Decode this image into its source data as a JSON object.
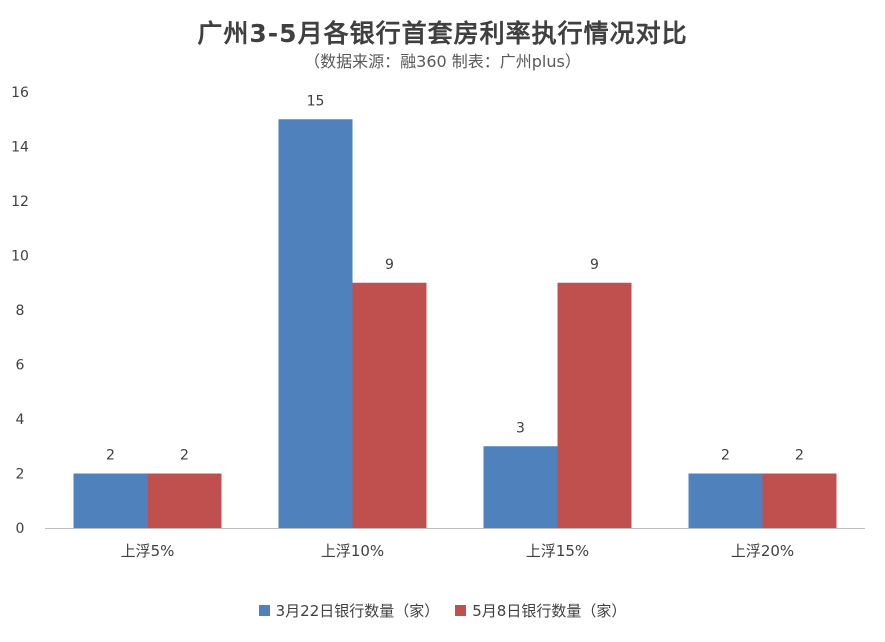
{
  "chart_data": {
    "type": "bar",
    "title": "广州3-5月各银行首套房利率执行情况对比",
    "subtitle": "（数据来源：融360   制表：广州plus）",
    "categories": [
      "上浮5%",
      "上浮10%",
      "上浮15%",
      "上浮20%"
    ],
    "series": [
      {
        "name": "3月22日银行数量（家）",
        "values": [
          2,
          15,
          3,
          2
        ],
        "color": "#4F81BD"
      },
      {
        "name": "5月8日银行数量（家）",
        "values": [
          2,
          9,
          9,
          2
        ],
        "color": "#C0504D"
      }
    ],
    "ylim": [
      0,
      16
    ],
    "yticks": [
      0,
      2,
      4,
      6,
      8,
      10,
      12,
      14,
      16
    ],
    "grid": false,
    "legend_position": "bottom"
  }
}
